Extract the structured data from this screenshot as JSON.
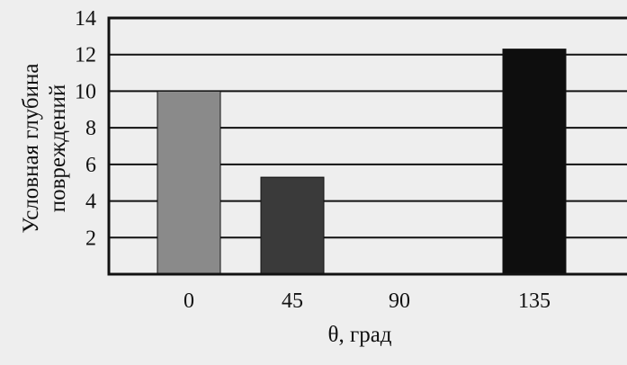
{
  "chart_data": {
    "type": "bar",
    "categories": [
      "0",
      "45",
      "90",
      "135"
    ],
    "values": [
      10,
      5.3,
      0,
      12.3
    ],
    "bar_colors": [
      "#8a8a8a",
      "#3a3a3a",
      "#ffffff",
      "#0e0e0e"
    ],
    "xlabel": "θ, град",
    "ylabel_lines": [
      "Условная глубина",
      "повреждений"
    ],
    "ylim": [
      0,
      14
    ],
    "yticks": [
      2,
      4,
      6,
      8,
      10,
      12,
      14
    ],
    "grid": true
  }
}
